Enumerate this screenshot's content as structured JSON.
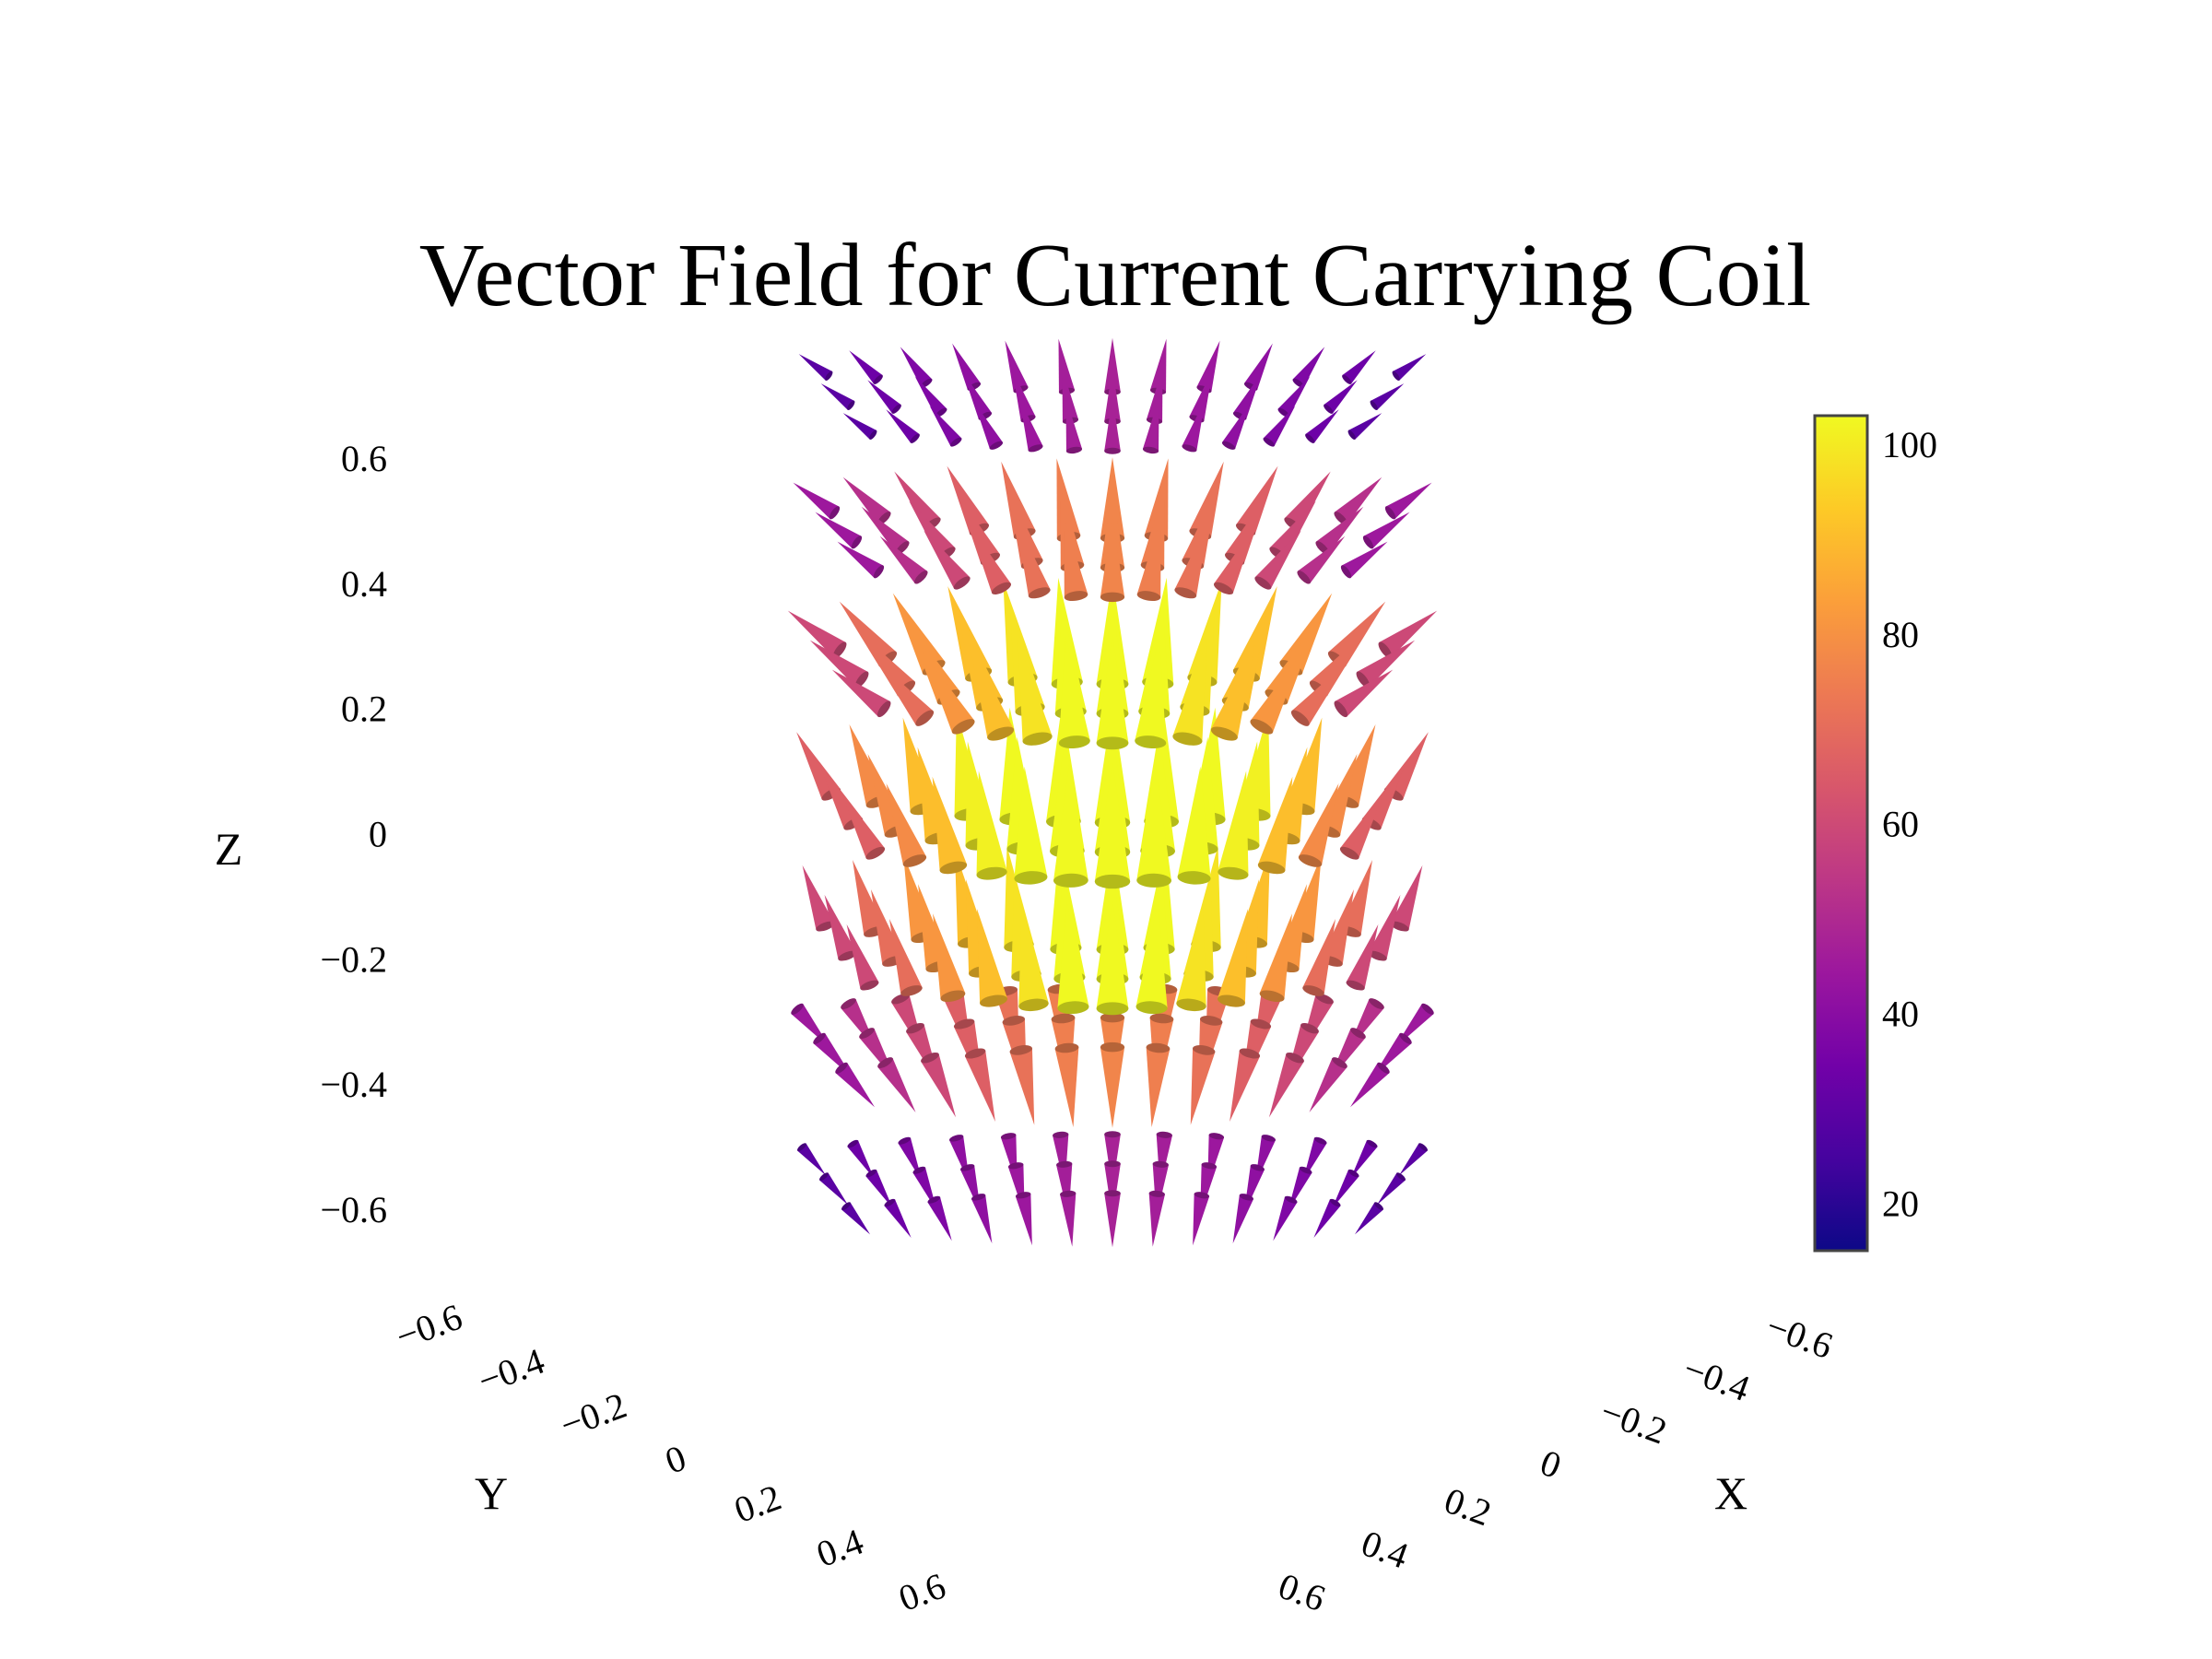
{
  "chart_data": {
    "type": "cone",
    "title": "Vector Field for Current Carrying Coil",
    "axes": {
      "x": {
        "label": "X",
        "range": [
          -0.6,
          0.6
        ],
        "ticks": [
          -0.6,
          -0.4,
          -0.2,
          0,
          0.2,
          0.4,
          0.6
        ],
        "tick_labels": [
          "−0.6",
          "−0.4",
          "−0.2",
          "0",
          "0.2",
          "0.4",
          "0.6"
        ]
      },
      "y": {
        "label": "Y",
        "range": [
          -0.6,
          0.6
        ],
        "ticks": [
          -0.6,
          -0.4,
          -0.2,
          0,
          0.2,
          0.4,
          0.6
        ],
        "tick_labels": [
          "−0.6",
          "−0.4",
          "−0.2",
          "0",
          "0.2",
          "0.4",
          "0.6"
        ]
      },
      "z": {
        "label": "Z",
        "range": [
          -0.6,
          0.6
        ],
        "ticks": [
          -0.6,
          -0.4,
          -0.2,
          0,
          0.2,
          0.4,
          0.6
        ],
        "tick_labels": [
          "−0.6",
          "−0.4",
          "−0.2",
          "0",
          "0.2",
          "0.4",
          "0.6"
        ]
      }
    },
    "colorbar": {
      "colorscale": "plasma",
      "colors": [
        "#0d0887",
        "#46039f",
        "#7201a8",
        "#9c179e",
        "#bd3786",
        "#d8576b",
        "#ed7953",
        "#fb9f3a",
        "#fdca26",
        "#f0f921"
      ],
      "range": [
        15,
        103
      ],
      "ticks": [
        20,
        40,
        60,
        80,
        100
      ],
      "tick_labels": [
        "20",
        "40",
        "60",
        "80",
        "100"
      ]
    },
    "grid": false,
    "field": {
      "z_levels": [
        -0.6,
        -0.4,
        -0.2,
        0,
        0.2,
        0.4,
        0.6
      ],
      "arrow_columns": [
        -0.6,
        -0.5,
        -0.4,
        -0.3,
        -0.2,
        -0.1,
        0,
        0.1,
        0.2,
        0.3,
        0.4,
        0.5,
        0.6
      ],
      "magnitude_max": 103,
      "magnitude_min": 15
    }
  }
}
